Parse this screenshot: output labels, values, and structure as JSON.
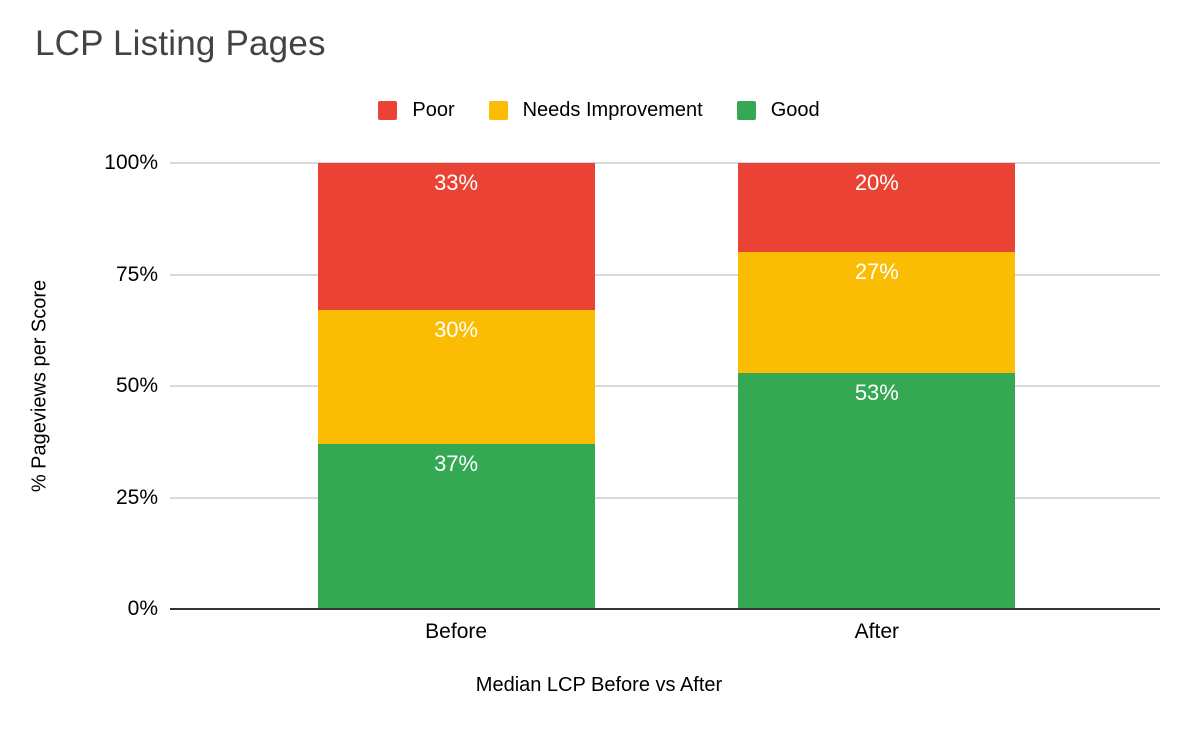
{
  "chart_data": {
    "type": "bar",
    "stacked": true,
    "title": "LCP Listing Pages",
    "xlabel": "Median LCP Before vs After",
    "ylabel": "% Pageviews per Score",
    "categories": [
      "Before",
      "After"
    ],
    "series": [
      {
        "name": "Poor",
        "color": "#EA4335",
        "values": [
          33,
          20
        ]
      },
      {
        "name": "Needs Improvement",
        "color": "#FBBC04",
        "values": [
          30,
          27
        ]
      },
      {
        "name": "Good",
        "color": "#34A853",
        "values": [
          37,
          53
        ]
      }
    ],
    "bar_label_suffix": "%",
    "y_ticks": [
      "0%",
      "25%",
      "50%",
      "75%",
      "100%"
    ],
    "ylim": [
      0,
      100
    ],
    "grid": true,
    "legend_position": "top",
    "colors": {
      "background": "#ffffff",
      "title": "#434343",
      "text": "#000000",
      "grid": "#d9d9d9",
      "axis": "#333333",
      "bar_label": "#ffffff"
    }
  }
}
